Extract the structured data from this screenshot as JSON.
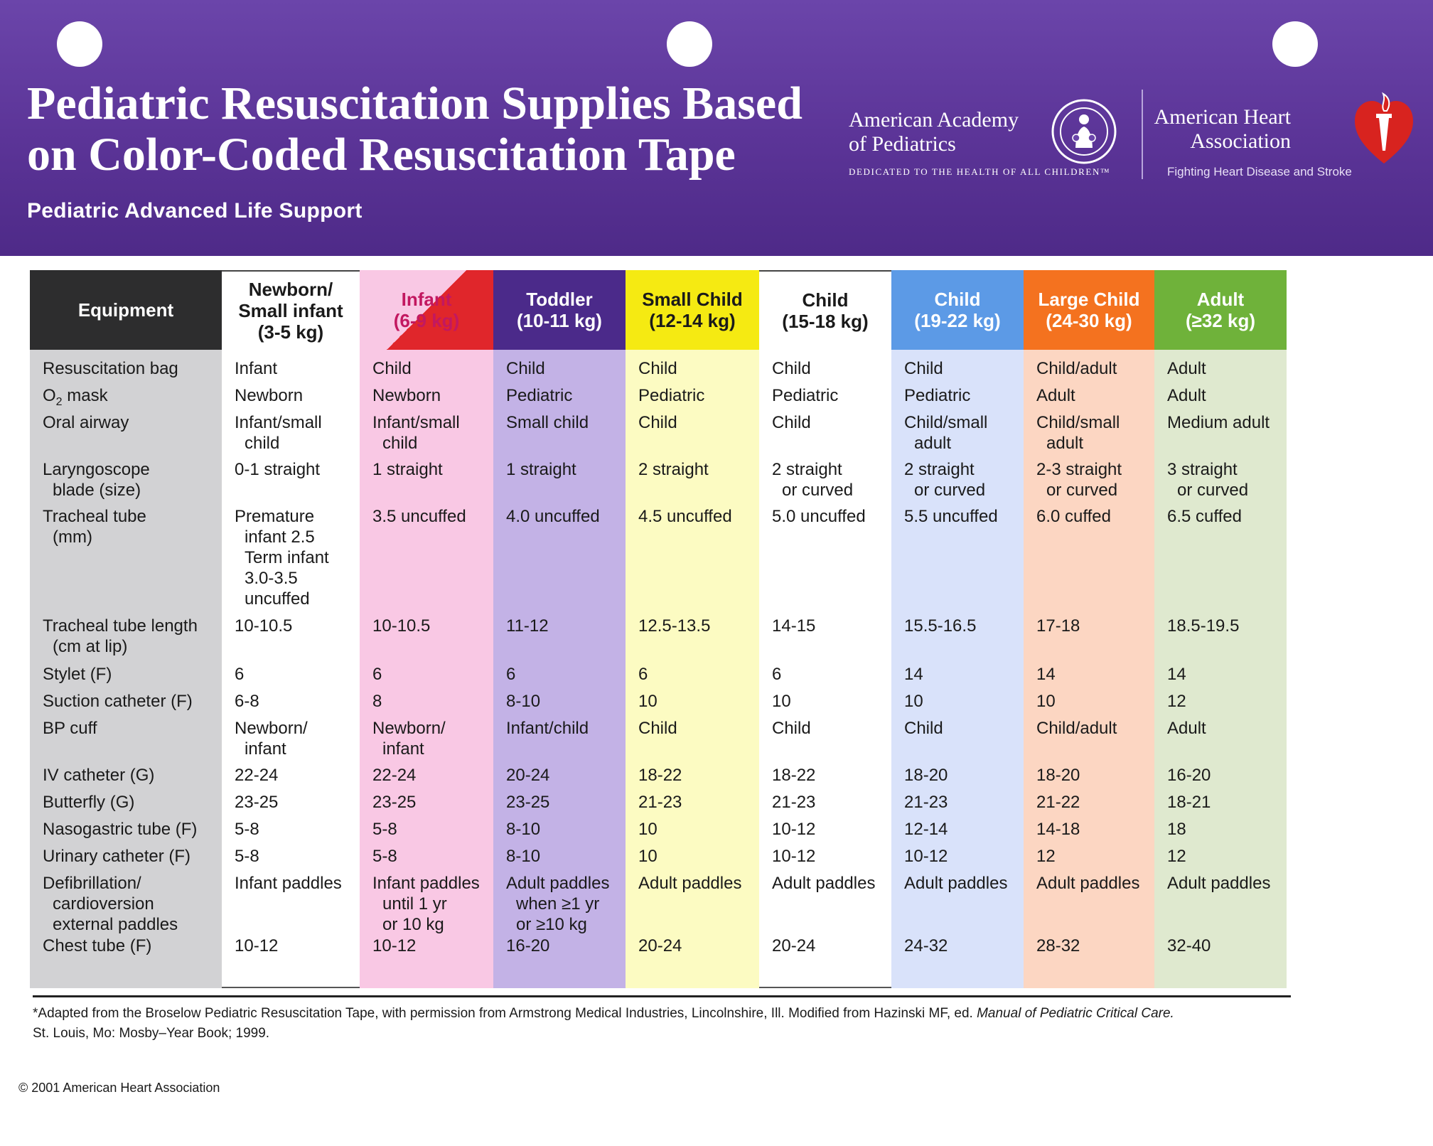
{
  "header": {
    "title_line1": "Pediatric Resuscitation Supplies Based",
    "title_line2": "on Color-Coded Resuscitation Tape",
    "subtitle": "Pediatric Advanced Life Support",
    "aap_name_line1": "American Academy",
    "aap_name_line2": "of Pediatrics",
    "aap_tagline": "DEDICATED TO THE HEALTH OF ALL CHILDREN™",
    "aha_name_line1": "American Heart",
    "aha_name_line2": "Association",
    "aha_tagline": "Fighting Heart Disease and Stroke"
  },
  "colors": {
    "header_purple": "#5b3497",
    "equipment": "#d2d2d4",
    "newborn": "#ffffff",
    "infant": "#f9c8e4",
    "toddler": "#c3b2e6",
    "small_child": "#fcfbc2",
    "child_15_18": "#ffffff",
    "child_19_22": "#d9e2fa",
    "large_child": "#fcd6c2",
    "adult": "#dfe9cf"
  },
  "table": {
    "equipment_header": "Equipment",
    "equipment": [
      [
        "Resuscitation bag"
      ],
      [
        "O",
        "2",
        " mask"
      ],
      [
        "Oral airway"
      ],
      [
        "Laryngoscope",
        "blade (size)"
      ],
      [
        "Tracheal tube",
        "(mm)"
      ],
      [
        "Tracheal tube length",
        "(cm at lip)"
      ],
      [
        "Stylet (F)"
      ],
      [
        "Suction catheter (F)"
      ],
      [
        "BP cuff"
      ],
      [
        "IV catheter (G)"
      ],
      [
        "Butterfly (G)"
      ],
      [
        "Nasogastric tube (F)"
      ],
      [
        "Urinary catheter (F)"
      ],
      [
        "Defibrillation/",
        "cardioversion",
        "external paddles"
      ],
      [
        "Chest tube (F)"
      ]
    ],
    "columns": [
      {
        "header": [
          "Newborn/",
          "Small infant",
          "(3-5 kg)"
        ],
        "cells": [
          [
            "Infant"
          ],
          [
            "Newborn"
          ],
          [
            "Infant/small",
            "child"
          ],
          [
            "0-1 straight"
          ],
          [
            "Premature",
            "infant 2.5",
            "Term infant",
            "3.0-3.5",
            "uncuffed"
          ],
          [
            "10-10.5"
          ],
          [
            "6"
          ],
          [
            "6-8"
          ],
          [
            "Newborn/",
            "infant"
          ],
          [
            "22-24"
          ],
          [
            "23-25"
          ],
          [
            "5-8"
          ],
          [
            "5-8"
          ],
          [
            "Infant paddles"
          ],
          [
            "10-12"
          ]
        ]
      },
      {
        "header": [
          "Infant",
          "(6-9 kg)"
        ],
        "cells": [
          [
            "Child"
          ],
          [
            "Newborn"
          ],
          [
            "Infant/small",
            "child"
          ],
          [
            "1 straight"
          ],
          [
            "3.5 uncuffed"
          ],
          [
            "10-10.5"
          ],
          [
            "6"
          ],
          [
            "8"
          ],
          [
            "Newborn/",
            "infant"
          ],
          [
            "22-24"
          ],
          [
            "23-25"
          ],
          [
            "5-8"
          ],
          [
            "5-8"
          ],
          [
            "Infant paddles",
            "until 1 yr",
            "or 10 kg"
          ],
          [
            "10-12"
          ]
        ]
      },
      {
        "header": [
          "Toddler",
          "(10-11 kg)"
        ],
        "cells": [
          [
            "Child"
          ],
          [
            "Pediatric"
          ],
          [
            "Small child"
          ],
          [
            "1 straight"
          ],
          [
            "4.0 uncuffed"
          ],
          [
            "11-12"
          ],
          [
            "6"
          ],
          [
            "8-10"
          ],
          [
            "Infant/child"
          ],
          [
            "20-24"
          ],
          [
            "23-25"
          ],
          [
            "8-10"
          ],
          [
            "8-10"
          ],
          [
            "Adult paddles",
            "when ≥1 yr",
            "or ≥10 kg"
          ],
          [
            "16-20"
          ]
        ]
      },
      {
        "header": [
          "Small Child",
          "(12-14 kg)"
        ],
        "cells": [
          [
            "Child"
          ],
          [
            "Pediatric"
          ],
          [
            "Child"
          ],
          [
            "2 straight"
          ],
          [
            "4.5 uncuffed"
          ],
          [
            "12.5-13.5"
          ],
          [
            "6"
          ],
          [
            "10"
          ],
          [
            "Child"
          ],
          [
            "18-22"
          ],
          [
            "21-23"
          ],
          [
            "10"
          ],
          [
            "10"
          ],
          [
            "Adult paddles"
          ],
          [
            "20-24"
          ]
        ]
      },
      {
        "header": [
          "Child",
          "(15-18 kg)"
        ],
        "cells": [
          [
            "Child"
          ],
          [
            "Pediatric"
          ],
          [
            "Child"
          ],
          [
            "2 straight",
            "or curved"
          ],
          [
            "5.0 uncuffed"
          ],
          [
            "14-15"
          ],
          [
            "6"
          ],
          [
            "10"
          ],
          [
            "Child"
          ],
          [
            "18-22"
          ],
          [
            "21-23"
          ],
          [
            "10-12"
          ],
          [
            "10-12"
          ],
          [
            "Adult paddles"
          ],
          [
            "20-24"
          ]
        ]
      },
      {
        "header": [
          "Child",
          "(19-22 kg)"
        ],
        "cells": [
          [
            "Child"
          ],
          [
            "Pediatric"
          ],
          [
            "Child/small",
            "adult"
          ],
          [
            "2 straight",
            "or curved"
          ],
          [
            "5.5 uncuffed"
          ],
          [
            "15.5-16.5"
          ],
          [
            "14"
          ],
          [
            "10"
          ],
          [
            "Child"
          ],
          [
            "18-20"
          ],
          [
            "21-23"
          ],
          [
            "12-14"
          ],
          [
            "10-12"
          ],
          [
            "Adult paddles"
          ],
          [
            "24-32"
          ]
        ]
      },
      {
        "header": [
          "Large Child",
          "(24-30 kg)"
        ],
        "cells": [
          [
            "Child/adult"
          ],
          [
            "Adult"
          ],
          [
            "Child/small",
            "adult"
          ],
          [
            "2-3 straight",
            "or curved"
          ],
          [
            "6.0 cuffed"
          ],
          [
            "17-18"
          ],
          [
            "14"
          ],
          [
            "10"
          ],
          [
            "Child/adult"
          ],
          [
            "18-20"
          ],
          [
            "21-22"
          ],
          [
            "14-18"
          ],
          [
            "12"
          ],
          [
            "Adult paddles"
          ],
          [
            "28-32"
          ]
        ]
      },
      {
        "header": [
          "Adult",
          "(≥32 kg)"
        ],
        "cells": [
          [
            "Adult"
          ],
          [
            "Adult"
          ],
          [
            "Medium adult"
          ],
          [
            "3 straight",
            "or curved"
          ],
          [
            "6.5 cuffed"
          ],
          [
            "18.5-19.5"
          ],
          [
            "14"
          ],
          [
            "12"
          ],
          [
            "Adult"
          ],
          [
            "16-20"
          ],
          [
            "18-21"
          ],
          [
            "18"
          ],
          [
            "12"
          ],
          [
            "Adult paddles"
          ],
          [
            "32-40"
          ]
        ]
      }
    ]
  },
  "footnote": {
    "line1_prefix": "*Adapted from the Broselow Pediatric Resuscitation Tape, with permission from Armstrong Medical Industries, Lincolnshire, Ill. Modified from Hazinski MF, ed. ",
    "book_title": "Manual of Pediatric Critical Care.",
    "line2": "St. Louis, Mo: Mosby–Year Book; 1999."
  },
  "copyright": "© 2001 American Heart Association"
}
